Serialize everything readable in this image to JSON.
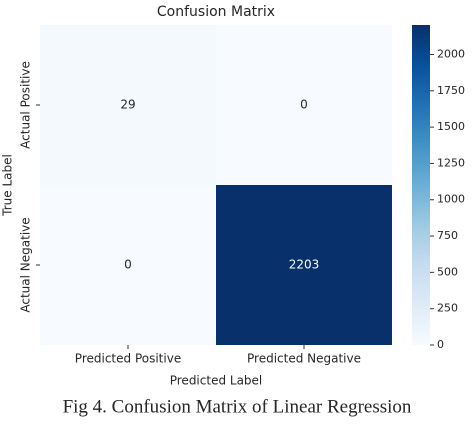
{
  "chart_data": {
    "type": "heatmap",
    "title": "Confusion Matrix",
    "x_label": "Predicted Label",
    "y_label": "True Label",
    "x_categories": [
      "Predicted Positive",
      "Predicted Negative"
    ],
    "y_categories": [
      "Actual Positive",
      "Actual Negative"
    ],
    "values": [
      [
        29,
        0
      ],
      [
        0,
        2203
      ]
    ],
    "colormap": [
      "#f7fbff",
      "#deebf7",
      "#c6dbef",
      "#9ecae1",
      "#6baed6",
      "#4292c6",
      "#2171b5",
      "#08519c",
      "#08306b"
    ],
    "clim": [
      0,
      2203
    ],
    "cticks": [
      0,
      250,
      500,
      750,
      1000,
      1250,
      1500,
      1750,
      2000
    ]
  },
  "caption": "Fig 4. Confusion Matrix of Linear Regression"
}
